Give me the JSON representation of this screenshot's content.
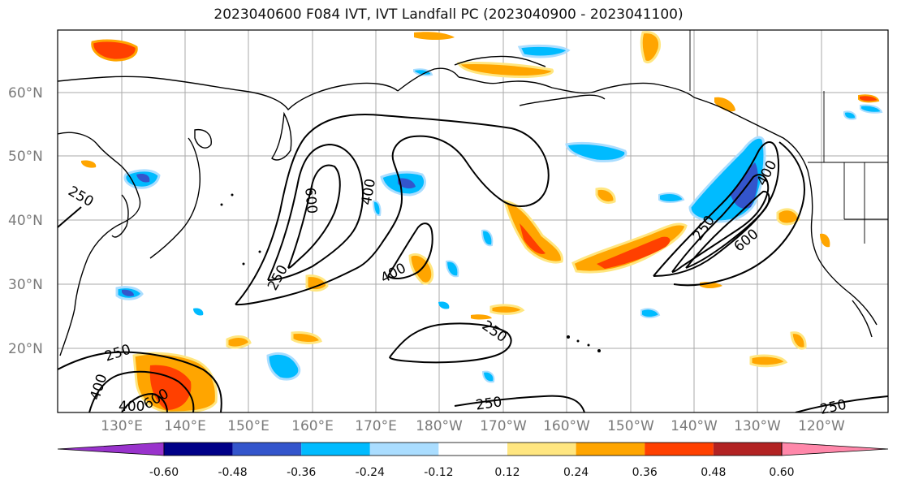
{
  "title": "2023040600 F084 IVT, IVT Landfall PC (2023040900 - 2023041100)",
  "latitude_labels": [
    "60°N",
    "50°N",
    "40°N",
    "30°N",
    "20°N"
  ],
  "longitude_labels": [
    "130°E",
    "140°E",
    "150°E",
    "160°E",
    "170°E",
    "180°W",
    "170°W",
    "160°W",
    "150°W",
    "140°W",
    "130°W",
    "120°W"
  ],
  "ivt_contour_labels": [
    "250",
    "400",
    "600",
    "400",
    "250",
    "400",
    "600",
    "250",
    "250",
    "600",
    "400",
    "250",
    "400",
    "600",
    "250",
    "250",
    "400"
  ],
  "colorbar": {
    "colors": [
      "#9933cc",
      "#000088",
      "#3355cc",
      "#00bbff",
      "#aaddff",
      "#ffffff",
      "#ffe680",
      "#ffa500",
      "#ff4000",
      "#b22222",
      "#ff88aa"
    ],
    "tick_labels": [
      "-0.60",
      "-0.48",
      "-0.36",
      "-0.24",
      "-0.12",
      "0.12",
      "0.24",
      "0.36",
      "0.48",
      "0.60"
    ]
  },
  "colors": {
    "positive_strong": "#ff4000",
    "positive_medium": "#ffa500",
    "positive_weak": "#ffe680",
    "negative_weak": "#aaddff",
    "negative_medium": "#00bbff",
    "negative_strong": "#3355cc",
    "grid": "#aaaaaa",
    "coast": "#000000"
  }
}
